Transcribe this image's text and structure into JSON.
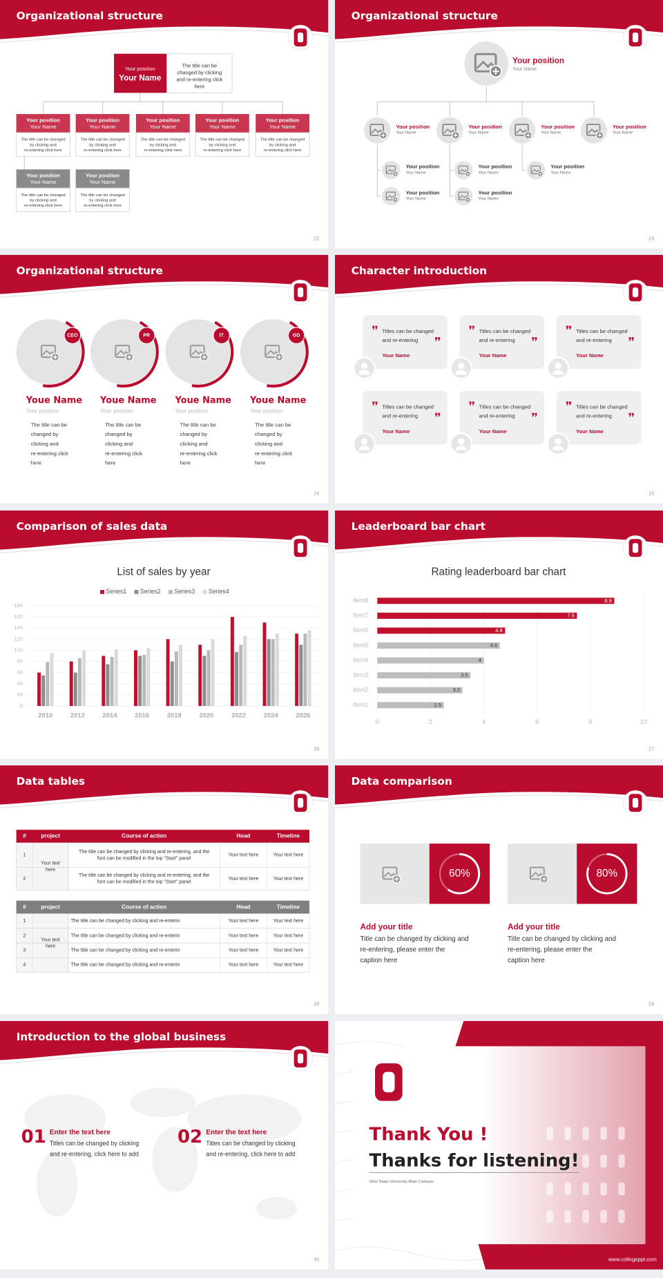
{
  "slides": [
    {
      "title": "Organizational structure",
      "page": 22
    },
    {
      "title": "Organizational structure",
      "page": 23
    },
    {
      "title": "Organizational structure",
      "page": 24
    },
    {
      "title": "Character introduction",
      "page": 25
    },
    {
      "title": "Comparison of sales data",
      "page": 26
    },
    {
      "title": "Leaderboard bar chart",
      "page": 27
    },
    {
      "title": "Data tables",
      "page": 28
    },
    {
      "title": "Data comparison",
      "page": 29
    },
    {
      "title": "Introduction to the global business",
      "page": 30
    }
  ],
  "org1": {
    "top": {
      "position": "Your position",
      "name": "Your Name",
      "note": "The title can be changed by clicking and re-entering click here"
    },
    "members": [
      {
        "position": "Your position",
        "name": "Your Name",
        "note": "The title can be changed by clicking and re-entering click here"
      },
      {
        "position": "Your position",
        "name": "Your Name",
        "note": "The title can be changed by clicking and re-entering click here"
      },
      {
        "position": "Your position",
        "name": "Your Name",
        "note": "The title can be changed by clicking and re-entering click here"
      },
      {
        "position": "Your position",
        "name": "Your Name",
        "note": "The title can be changed by clicking and re-entering click here"
      },
      {
        "position": "Your position",
        "name": "Your Name",
        "note": "The title can be changed by clicking and re-entering click here"
      },
      {
        "position": "Your position",
        "name": "Your Name",
        "note": "The title can be changed by clicking and re-entering click here"
      },
      {
        "position": "Your position",
        "name": "Your Name",
        "note": "The title can be changed by clicking and re-entering click here"
      }
    ]
  },
  "org2": {
    "nodes": [
      {
        "position": "Your position",
        "name": "Your Name"
      },
      {
        "position": "Your position",
        "name": "Your Name"
      },
      {
        "position": "Your position",
        "name": "Your Name"
      },
      {
        "position": "Your position",
        "name": "Your Name"
      },
      {
        "position": "Your position",
        "name": "Your Name"
      },
      {
        "position": "Your position",
        "name": "Your Name"
      },
      {
        "position": "Your position",
        "name": "Your Name"
      },
      {
        "position": "Your position",
        "name": "Your Name"
      },
      {
        "position": "Your position",
        "name": "Your Name"
      },
      {
        "position": "Your position",
        "name": "Your Name"
      }
    ]
  },
  "roles": [
    {
      "badge": "CEO",
      "name": "Youe Name",
      "position": "Your position",
      "note": "The title can be changed by clicking and re-entering click here"
    },
    {
      "badge": "PR",
      "name": "Youe Name",
      "position": "Your position",
      "note": "The title can be changed by clicking and re-entering click here"
    },
    {
      "badge": "IT",
      "name": "Youe Name",
      "position": "Your position",
      "note": "The title can be changed by clicking and re-entering click here"
    },
    {
      "badge": "GD",
      "name": "Youe Name",
      "position": "Your position",
      "note": "The title can be changed by clicking and re-entering click here"
    }
  ],
  "quotes": [
    {
      "text": "Titles can be changed and re-entering",
      "name": "Your Name"
    },
    {
      "text": "Titles can be changed and re-entering",
      "name": "Your Name"
    },
    {
      "text": "Titles can be changed and re-entering",
      "name": "Your Name"
    },
    {
      "text": "Titles can be changed and re-entering",
      "name": "Your Name"
    },
    {
      "text": "Titles can be changed and re-entering",
      "name": "Your Name"
    },
    {
      "text": "Titles can be changed and re-entering",
      "name": "Your Name"
    }
  ],
  "chart_data": [
    {
      "type": "bar",
      "title": "List of sales by year",
      "categories": [
        "2010",
        "2012",
        "2014",
        "2016",
        "2018",
        "2020",
        "2022",
        "2024",
        "2026"
      ],
      "series": [
        {
          "name": "Series1",
          "color": "#c0102e",
          "values": [
            60,
            80,
            90,
            100,
            120,
            110,
            160,
            150,
            130
          ]
        },
        {
          "name": "Series2",
          "color": "#8c8c8c",
          "values": [
            55,
            60,
            75,
            90,
            80,
            90,
            97,
            120,
            110
          ]
        },
        {
          "name": "Series3",
          "color": "#b8b8b8",
          "values": [
            79,
            86,
            88,
            92,
            98,
            100,
            110,
            120,
            130
          ]
        },
        {
          "name": "Series4",
          "color": "#dadada",
          "values": [
            95,
            100,
            102,
            104,
            110,
            120,
            126,
            130,
            136
          ]
        }
      ],
      "ylim": [
        0,
        180
      ],
      "yticks": [
        0,
        20,
        40,
        60,
        80,
        100,
        120,
        140,
        160,
        180
      ],
      "grid": true,
      "legend": "top"
    },
    {
      "type": "barh",
      "title": "Rating leaderboard bar chart",
      "categories": [
        "Item1",
        "Item2",
        "Item3",
        "Item4",
        "Item5",
        "Item6",
        "Item7",
        "Item8"
      ],
      "values": [
        2.5,
        3.2,
        3.5,
        4,
        4.6,
        4.8,
        7.5,
        8.9
      ],
      "colors": [
        "#bdbdbd",
        "#bdbdbd",
        "#bdbdbd",
        "#bdbdbd",
        "#bdbdbd",
        "#c0102e",
        "#c0102e",
        "#c0102e"
      ],
      "xlim": [
        0,
        10
      ],
      "xticks": [
        0,
        2,
        4,
        6,
        8,
        10
      ],
      "grid": true
    }
  ],
  "tables": [
    {
      "header": [
        "#",
        "project",
        "Course of action",
        "Head",
        "Timeline"
      ],
      "project": "Your text here",
      "rows": [
        [
          "1",
          "The title can be changed by clicking and re-entering, and the font can be modified in the top \"Start\" panel",
          "Your text here",
          "Your text here"
        ],
        [
          "2",
          "The title can be changed by clicking and re-entering, and the font can be modified in the top \"Start\" panel",
          "Your text here",
          "Your text here"
        ]
      ]
    },
    {
      "header": [
        "#",
        "project",
        "Course of action",
        "Head",
        "Timeline"
      ],
      "project": "Your text here",
      "rows": [
        [
          "1",
          "The title can be changed by clicking and re-enterin",
          "Your text here",
          "Your text here"
        ],
        [
          "2",
          "The title can be changed by clicking and re-enterin",
          "Your text here",
          "Your text here"
        ],
        [
          "3",
          "The title can be changed by clicking and re-enterin",
          "Your text here",
          "Your text here"
        ],
        [
          "4",
          "The title can be changed by clicking and re-enterin",
          "Your text here",
          "Your text here"
        ]
      ]
    }
  ],
  "comparison": [
    {
      "percent": 60,
      "percent_label": "60%",
      "title": "Add your title",
      "text": "Title can be changed by clicking and re-entering, please enter the caption here"
    },
    {
      "percent": 80,
      "percent_label": "80%",
      "title": "Add your title",
      "text": "Title can be changed by clicking and re-entering, please enter the caption here"
    }
  ],
  "global": [
    {
      "number": "01",
      "title": "Enter the text here",
      "text": "Titles can be changed by clicking and re-entering, click here to add"
    },
    {
      "number": "02",
      "title": "Enter the text here",
      "text": "Titles can be changed by clicking and re-entering, click here to add"
    }
  ],
  "closing": {
    "thanks": "Thank You !",
    "listening": "Thanks for listening!",
    "campus": "Ohio State University-Main Campus",
    "url": "www.collegeppt.com"
  }
}
